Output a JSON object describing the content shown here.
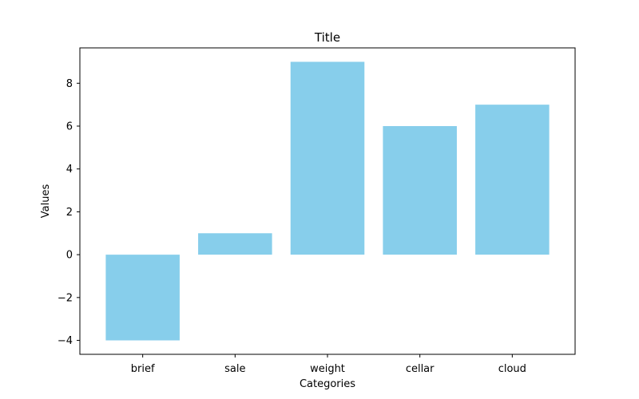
{
  "chart_data": {
    "type": "bar",
    "title": "Title",
    "xlabel": "Categories",
    "ylabel": "Values",
    "categories": [
      "brief",
      "sale",
      "weight",
      "cellar",
      "cloud"
    ],
    "values": [
      -4,
      1,
      9,
      6,
      7
    ],
    "ylim": [
      -4.65,
      9.65
    ],
    "yticks": [
      -4,
      -2,
      0,
      2,
      4,
      6,
      8
    ],
    "ytick_labels": [
      "−4",
      "−2",
      "0",
      "2",
      "4",
      "6",
      "8"
    ],
    "grid": false,
    "legend": "none",
    "bar_color": "#87CEEB"
  }
}
